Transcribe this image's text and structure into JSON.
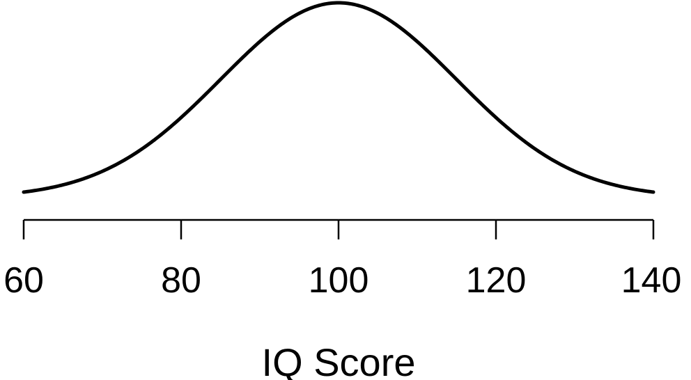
{
  "chart_data": {
    "type": "line",
    "title": "",
    "xlabel": "IQ Score",
    "ylabel": "",
    "xlim": [
      60,
      140
    ],
    "x_ticks": [
      60,
      80,
      100,
      120,
      140
    ],
    "x_tick_labels": [
      "60",
      "80",
      "100",
      "120",
      "140"
    ],
    "grid": false,
    "legend": "none",
    "y_axis_shown": false,
    "series": [
      {
        "distribution": "normal",
        "mean": 100,
        "sd": 15,
        "x_range": [
          60,
          140
        ],
        "color": "#000000"
      }
    ]
  }
}
